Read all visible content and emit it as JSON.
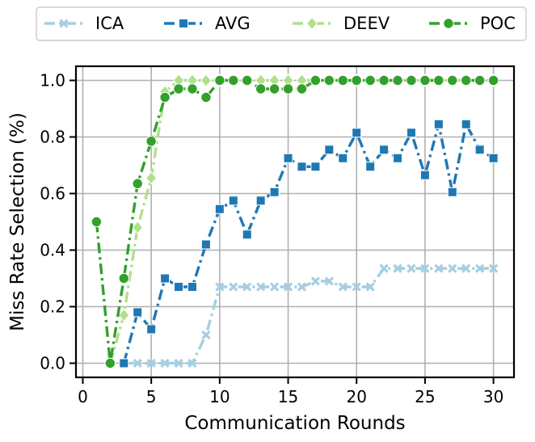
{
  "chart_data": {
    "type": "line",
    "title": "",
    "xlabel": "Communication Rounds",
    "ylabel": "Miss Rate Selection (%)",
    "xlim": [
      -0.5,
      31.5
    ],
    "ylim": [
      -0.05,
      1.05
    ],
    "xticks": [
      0,
      5,
      10,
      15,
      20,
      25,
      30
    ],
    "yticks": [
      0.0,
      0.2,
      0.4,
      0.6,
      0.8,
      1.0
    ],
    "xtick_labels": [
      "0",
      "5",
      "10",
      "15",
      "20",
      "25",
      "30"
    ],
    "ytick_labels": [
      "0.0",
      "0.2",
      "0.4",
      "0.6",
      "0.8",
      "1.0"
    ],
    "grid": true,
    "legend_position": "top, above plot, 4 columns",
    "series": [
      {
        "name": "ICA",
        "color": "#a6cee3",
        "marker": "x",
        "x": [
          3,
          4,
          5,
          6,
          7,
          8,
          9,
          10,
          11,
          12,
          13,
          14,
          15,
          16,
          17,
          18,
          19,
          20,
          21,
          22,
          23,
          24,
          25,
          26,
          27,
          28,
          29,
          30
        ],
        "values": [
          0.0,
          0.0,
          0.0,
          0.0,
          0.0,
          0.0,
          0.1,
          0.27,
          0.27,
          0.27,
          0.27,
          0.27,
          0.27,
          0.27,
          0.29,
          0.29,
          0.27,
          0.27,
          0.27,
          0.335,
          0.335,
          0.335,
          0.335,
          0.335,
          0.335,
          0.335,
          0.335,
          0.335
        ]
      },
      {
        "name": "AVG",
        "color": "#1f78b4",
        "marker": "square",
        "x": [
          3,
          4,
          5,
          6,
          7,
          8,
          9,
          10,
          11,
          12,
          13,
          14,
          15,
          16,
          17,
          18,
          19,
          20,
          21,
          22,
          23,
          24,
          25,
          26,
          27,
          28,
          29,
          30
        ],
        "values": [
          0.0,
          0.18,
          0.12,
          0.3,
          0.27,
          0.27,
          0.42,
          0.545,
          0.575,
          0.455,
          0.575,
          0.605,
          0.725,
          0.695,
          0.695,
          0.755,
          0.725,
          0.815,
          0.695,
          0.755,
          0.725,
          0.815,
          0.665,
          0.845,
          0.605,
          0.845,
          0.755,
          0.725
        ]
      },
      {
        "name": "DEEV",
        "color": "#b2df8a",
        "marker": "diamond",
        "x": [
          2,
          3,
          4,
          5,
          6,
          7,
          8,
          9,
          10,
          11,
          12,
          13,
          14,
          15,
          16,
          17,
          18,
          19,
          20,
          21,
          22,
          23,
          24,
          25,
          26,
          27,
          28,
          29,
          30
        ],
        "values": [
          0.0,
          0.17,
          0.48,
          0.655,
          0.96,
          1.0,
          1.0,
          1.0,
          1.0,
          1.0,
          1.0,
          1.0,
          1.0,
          1.0,
          1.0,
          1.0,
          1.0,
          1.0,
          1.0,
          1.0,
          1.0,
          1.0,
          1.0,
          1.0,
          1.0,
          1.0,
          1.0,
          1.0,
          1.0
        ]
      },
      {
        "name": "POC",
        "color": "#33a02c",
        "marker": "circle",
        "x": [
          1,
          2,
          3,
          4,
          5,
          6,
          7,
          8,
          9,
          10,
          11,
          12,
          13,
          14,
          15,
          16,
          17,
          18,
          19,
          20,
          21,
          22,
          23,
          24,
          25,
          26,
          27,
          28,
          29,
          30
        ],
        "values": [
          0.5,
          0.0,
          0.3,
          0.635,
          0.785,
          0.94,
          0.97,
          0.97,
          0.94,
          1.0,
          1.0,
          1.0,
          0.97,
          0.97,
          0.97,
          0.97,
          1.0,
          1.0,
          1.0,
          1.0,
          1.0,
          1.0,
          1.0,
          1.0,
          1.0,
          1.0,
          1.0,
          1.0,
          1.0,
          1.0
        ]
      }
    ]
  }
}
